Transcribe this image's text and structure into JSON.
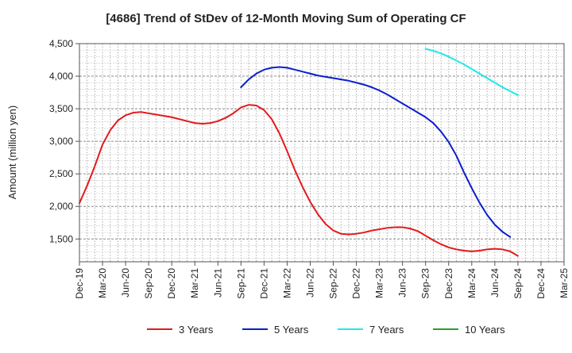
{
  "chart_data": {
    "type": "line",
    "title": "[4686]  Trend of StDev of 12-Month Moving Sum of Operating CF",
    "xlabel": "",
    "ylabel": "Amount (million yen)",
    "ylim": [
      1150,
      4500
    ],
    "yticks": [
      1500,
      2000,
      2500,
      3000,
      3500,
      4000,
      4500
    ],
    "ytick_labels": [
      "1,500",
      "2,000",
      "2,500",
      "3,000",
      "3,500",
      "4,000",
      "4,500"
    ],
    "x_start": "2019-12",
    "x_end": "2025-03",
    "xtick_labels": [
      "Dec-19",
      "Mar-20",
      "Jun-20",
      "Sep-20",
      "Dec-20",
      "Mar-21",
      "Jun-21",
      "Sep-21",
      "Dec-21",
      "Mar-22",
      "Jun-22",
      "Sep-22",
      "Dec-22",
      "Mar-23",
      "Jun-23",
      "Sep-23",
      "Dec-23",
      "Mar-24",
      "Jun-24",
      "Sep-24",
      "Dec-24",
      "Mar-25"
    ],
    "grid": true,
    "legend_position": "bottom",
    "series": [
      {
        "name": "3 Years",
        "color": "#e31a1c",
        "points": [
          [
            "2019-12",
            2050
          ],
          [
            "2020-01",
            2320
          ],
          [
            "2020-02",
            2620
          ],
          [
            "2020-03",
            2950
          ],
          [
            "2020-04",
            3170
          ],
          [
            "2020-05",
            3320
          ],
          [
            "2020-06",
            3400
          ],
          [
            "2020-07",
            3440
          ],
          [
            "2020-08",
            3450
          ],
          [
            "2020-09",
            3430
          ],
          [
            "2020-10",
            3410
          ],
          [
            "2020-11",
            3390
          ],
          [
            "2020-12",
            3370
          ],
          [
            "2021-01",
            3340
          ],
          [
            "2021-02",
            3310
          ],
          [
            "2021-03",
            3280
          ],
          [
            "2021-04",
            3270
          ],
          [
            "2021-05",
            3280
          ],
          [
            "2021-06",
            3310
          ],
          [
            "2021-07",
            3360
          ],
          [
            "2021-08",
            3430
          ],
          [
            "2021-09",
            3520
          ],
          [
            "2021-10",
            3560
          ],
          [
            "2021-11",
            3550
          ],
          [
            "2021-12",
            3480
          ],
          [
            "2022-01",
            3340
          ],
          [
            "2022-02",
            3120
          ],
          [
            "2022-03",
            2850
          ],
          [
            "2022-04",
            2560
          ],
          [
            "2022-05",
            2300
          ],
          [
            "2022-06",
            2070
          ],
          [
            "2022-07",
            1880
          ],
          [
            "2022-08",
            1730
          ],
          [
            "2022-09",
            1630
          ],
          [
            "2022-10",
            1580
          ],
          [
            "2022-11",
            1570
          ],
          [
            "2022-12",
            1580
          ],
          [
            "2023-01",
            1600
          ],
          [
            "2023-02",
            1630
          ],
          [
            "2023-03",
            1650
          ],
          [
            "2023-04",
            1670
          ],
          [
            "2023-05",
            1680
          ],
          [
            "2023-06",
            1680
          ],
          [
            "2023-07",
            1660
          ],
          [
            "2023-08",
            1620
          ],
          [
            "2023-09",
            1550
          ],
          [
            "2023-10",
            1480
          ],
          [
            "2023-11",
            1420
          ],
          [
            "2023-12",
            1370
          ],
          [
            "2024-01",
            1340
          ],
          [
            "2024-02",
            1320
          ],
          [
            "2024-03",
            1310
          ],
          [
            "2024-04",
            1320
          ],
          [
            "2024-05",
            1340
          ],
          [
            "2024-06",
            1350
          ],
          [
            "2024-07",
            1340
          ],
          [
            "2024-08",
            1310
          ],
          [
            "2024-09",
            1240
          ]
        ]
      },
      {
        "name": "5 Years",
        "color": "#0a1fcc",
        "points": [
          [
            "2021-09",
            3830
          ],
          [
            "2021-10",
            3950
          ],
          [
            "2021-11",
            4040
          ],
          [
            "2021-12",
            4100
          ],
          [
            "2022-01",
            4130
          ],
          [
            "2022-02",
            4140
          ],
          [
            "2022-03",
            4130
          ],
          [
            "2022-04",
            4100
          ],
          [
            "2022-05",
            4070
          ],
          [
            "2022-06",
            4040
          ],
          [
            "2022-07",
            4010
          ],
          [
            "2022-08",
            3990
          ],
          [
            "2022-09",
            3970
          ],
          [
            "2022-10",
            3950
          ],
          [
            "2022-11",
            3930
          ],
          [
            "2022-12",
            3900
          ],
          [
            "2023-01",
            3870
          ],
          [
            "2023-02",
            3830
          ],
          [
            "2023-03",
            3780
          ],
          [
            "2023-04",
            3720
          ],
          [
            "2023-05",
            3650
          ],
          [
            "2023-06",
            3580
          ],
          [
            "2023-07",
            3510
          ],
          [
            "2023-08",
            3440
          ],
          [
            "2023-09",
            3370
          ],
          [
            "2023-10",
            3280
          ],
          [
            "2023-11",
            3150
          ],
          [
            "2023-12",
            2990
          ],
          [
            "2024-01",
            2780
          ],
          [
            "2024-02",
            2520
          ],
          [
            "2024-03",
            2280
          ],
          [
            "2024-04",
            2060
          ],
          [
            "2024-05",
            1870
          ],
          [
            "2024-06",
            1720
          ],
          [
            "2024-07",
            1610
          ],
          [
            "2024-08",
            1530
          ]
        ]
      },
      {
        "name": "7 Years",
        "color": "#22e8e8",
        "points": [
          [
            "2023-09",
            4420
          ],
          [
            "2023-10",
            4390
          ],
          [
            "2023-11",
            4350
          ],
          [
            "2023-12",
            4300
          ],
          [
            "2024-01",
            4240
          ],
          [
            "2024-02",
            4180
          ],
          [
            "2024-03",
            4110
          ],
          [
            "2024-04",
            4040
          ],
          [
            "2024-05",
            3970
          ],
          [
            "2024-06",
            3900
          ],
          [
            "2024-07",
            3830
          ],
          [
            "2024-08",
            3770
          ],
          [
            "2024-09",
            3710
          ]
        ]
      },
      {
        "name": "10 Years",
        "color": "#2ca02c",
        "points": []
      }
    ]
  }
}
